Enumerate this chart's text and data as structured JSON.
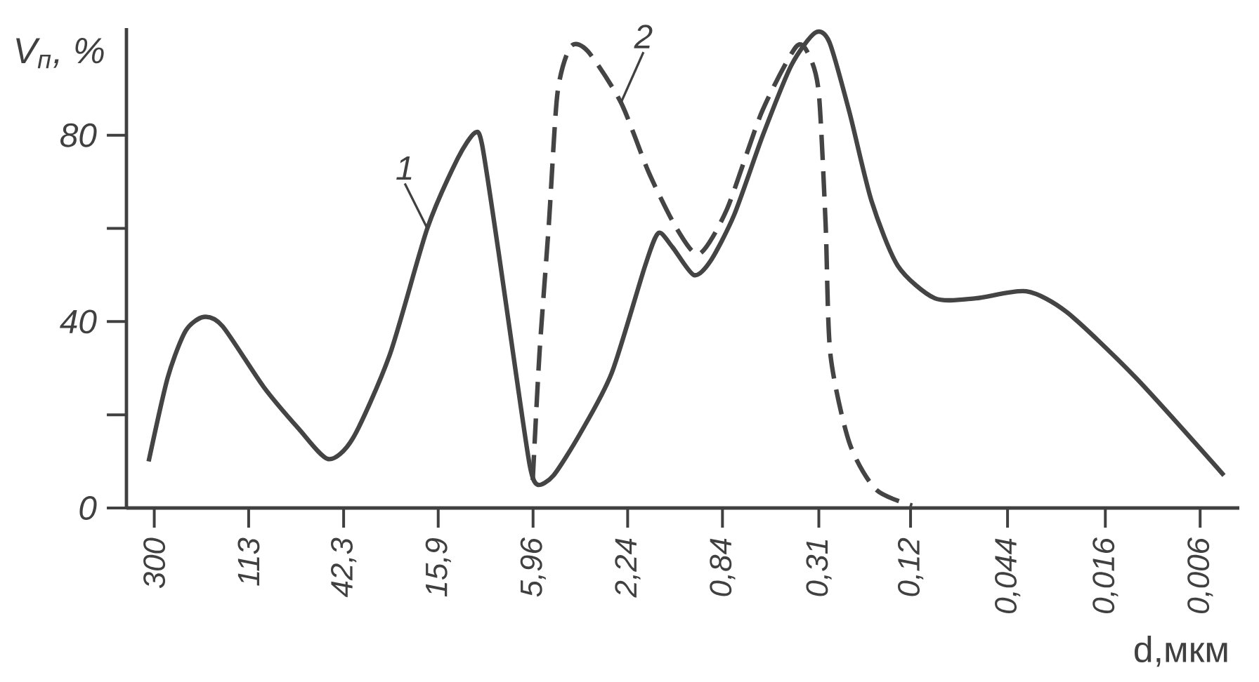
{
  "chart_data": {
    "type": "line",
    "xlabel": "d,мкм",
    "ylabel": "V$_{п}$, %",
    "log": "x",
    "xlim": [
      400,
      0.004
    ],
    "ylim": [
      0,
      103
    ],
    "xticks": [
      300,
      113,
      {
        "value": 42.3,
        "label": "42,3"
      },
      {
        "value": 15.9,
        "label": "15,9"
      },
      {
        "value": 5.96,
        "label": "5,96"
      },
      {
        "value": 2.24,
        "label": "2,24"
      },
      {
        "value": 0.84,
        "label": "0,84"
      },
      {
        "value": 0.31,
        "label": "0,31"
      },
      {
        "value": 0.12,
        "label": "0,12"
      },
      {
        "value": 0.044,
        "label": "0,044"
      },
      {
        "value": 0.016,
        "label": "0,016"
      },
      {
        "value": 0.006,
        "label": "0,006"
      }
    ],
    "yticks": [
      0,
      {
        "value": 20,
        "label": null
      },
      40,
      {
        "value": 60,
        "label": null
      },
      80
    ],
    "grid": false,
    "legend": false,
    "marker": "none",
    "series": [
      {
        "color": "#444444",
        "line_style": "solid",
        "x": [
          318,
          261,
          217,
          180,
          148,
          96.8,
          67.3,
          49.6,
          38.4,
          26.2,
          17.8,
          13.0,
          10.9,
          10.1,
          8.52,
          7.07,
          6.16,
          5.69,
          4.82,
          3.66,
          2.64,
          1.87,
          1.63,
          1.41,
          1.13,
          0.951,
          0.743,
          0.553,
          0.412,
          0.322,
          0.278,
          0.226,
          0.18,
          0.137,
          0.0933,
          0.0611,
          0.0363,
          0.0238,
          0.0117,
          0.00469
        ],
        "values": [
          10,
          28,
          38,
          41,
          39,
          26,
          17,
          10.5,
          15,
          33,
          60,
          75,
          80.5,
          78,
          55,
          28,
          9,
          5,
          7,
          16,
          29,
          52,
          59,
          56,
          50,
          53,
          63,
          80,
          95,
          102,
          100,
          85,
          66,
          52,
          45,
          45,
          46.5,
          42,
          28,
          7
        ]
      },
      {
        "color": "#444444",
        "line_style": "dashed",
        "x": [
          5.98,
          5.58,
          5.06,
          4.63,
          4.04,
          3.38,
          2.4,
          1.8,
          1.35,
          1.07,
          0.804,
          0.559,
          0.392,
          0.342,
          0.31,
          0.289,
          0.275,
          0.226,
          0.172,
          0.118
        ],
        "values": [
          6,
          33,
          61,
          89,
          99,
          98,
          87,
          72,
          60,
          54.5,
          64,
          85,
          99,
          97,
          89,
          61,
          33,
          14,
          4,
          0.5
        ]
      }
    ],
    "annotations": [
      {
        "text": "1",
        "x": 17.8,
        "y": 60
      },
      {
        "text": "2",
        "x": 2.4,
        "y": 87
      }
    ]
  }
}
